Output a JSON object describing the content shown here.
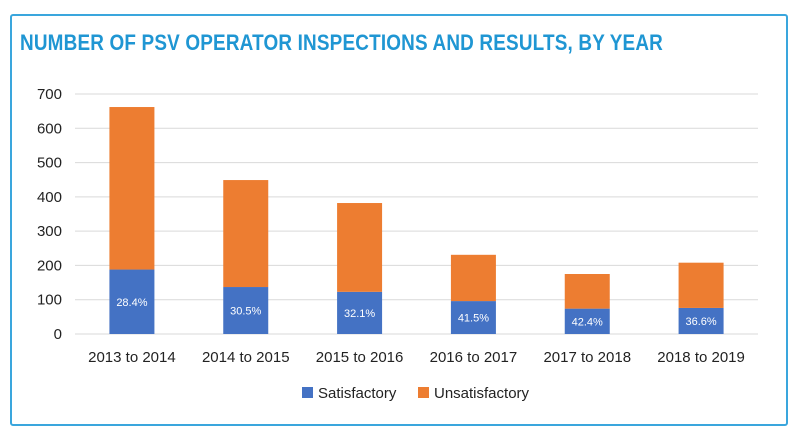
{
  "chart_data": {
    "type": "bar",
    "stacked": true,
    "title": "NUMBER OF PSV OPERATOR INSPECTIONS AND RESULTS, BY YEAR",
    "categories": [
      "2013 to 2014",
      "2014 to 2015",
      "2015 to 2016",
      "2016 to 2017",
      "2017 to 2018",
      "2018 to 2019"
    ],
    "series": [
      {
        "name": "Satisfactory",
        "color": "#4472c4",
        "values": [
          188,
          137,
          123,
          96,
          74,
          76
        ]
      },
      {
        "name": "Unsatisfactory",
        "color": "#ed7d31",
        "values": [
          474,
          312,
          259,
          135,
          101,
          132
        ]
      }
    ],
    "data_labels": [
      "28.4%",
      "30.5%",
      "32.1%",
      "41.5%",
      "42.4%",
      "36.6%"
    ],
    "ylim": [
      0,
      700
    ],
    "yticks": [
      0,
      100,
      200,
      300,
      400,
      500,
      600,
      700
    ],
    "grid": true,
    "legend_position": "bottom",
    "colors": {
      "title": "#1f96d3",
      "frame": "#3aa6dd",
      "grid": "#d9d9d9"
    }
  }
}
